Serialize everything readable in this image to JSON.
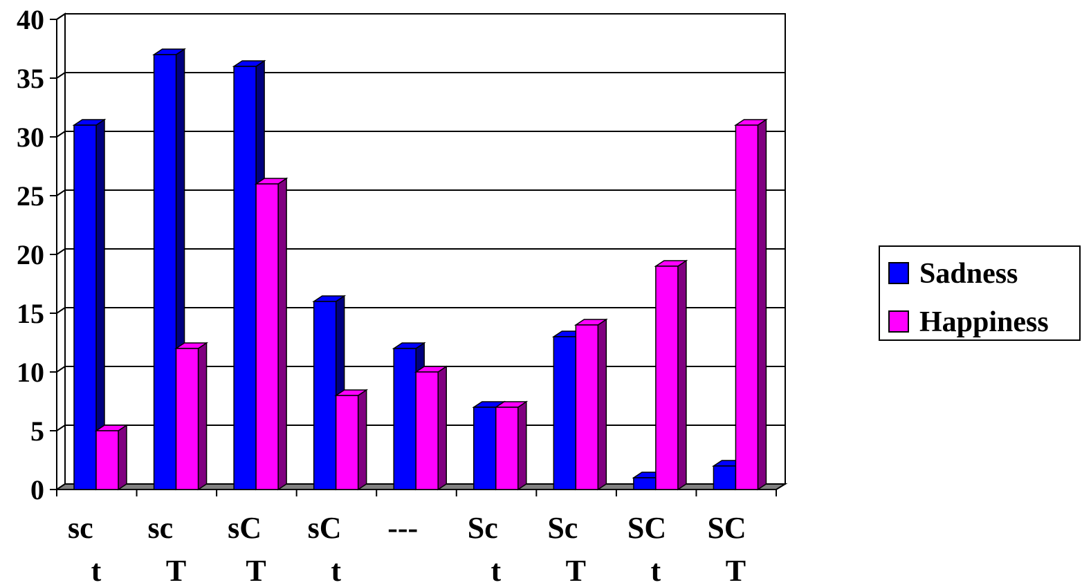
{
  "chart_data": {
    "type": "bar",
    "style": "3d-clustered-column",
    "categories": [
      [
        "sc",
        "t"
      ],
      [
        "sc",
        "T"
      ],
      [
        "sC",
        "T"
      ],
      [
        "sC",
        "t"
      ],
      [
        "---",
        ""
      ],
      [
        "Sc",
        "t"
      ],
      [
        "Sc",
        "T"
      ],
      [
        "SC",
        "t"
      ],
      [
        "SC",
        "T"
      ]
    ],
    "series": [
      {
        "name": "Sadness",
        "color": "#0000FF",
        "side_color": "#000080",
        "values": [
          31,
          37,
          36,
          16,
          12,
          7,
          13,
          1,
          2
        ]
      },
      {
        "name": "Happiness",
        "color": "#FF00FF",
        "side_color": "#800080",
        "values": [
          5,
          12,
          26,
          8,
          10,
          7,
          14,
          19,
          31
        ]
      }
    ],
    "ylim": [
      0,
      40
    ],
    "yticks": [
      "0",
      "5",
      "10",
      "15",
      "20",
      "25",
      "30",
      "35",
      "40"
    ],
    "grid": true,
    "legend_position": "right",
    "title": "",
    "xlabel": "",
    "ylabel": ""
  }
}
